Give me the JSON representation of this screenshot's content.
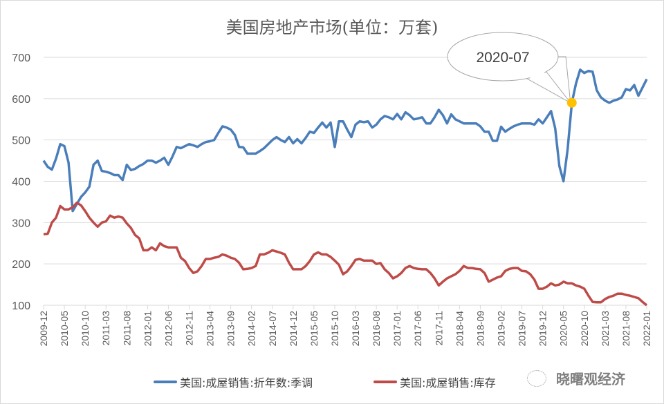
{
  "chart_data": {
    "type": "line",
    "title": "美国房地产市场(单位：万套)",
    "xlabel": "",
    "ylabel": "",
    "ylim": [
      100,
      700
    ],
    "yticks": [
      100,
      200,
      300,
      400,
      500,
      600,
      700
    ],
    "grid": true,
    "legend_position": "bottom",
    "start_month": "2009-12",
    "x_tick_labels": [
      "2009-12",
      "2010-05",
      "2010-10",
      "2011-03",
      "2011-08",
      "2012-01",
      "2012-06",
      "2012-11",
      "2013-04",
      "2013-09",
      "2014-02",
      "2014-07",
      "2014-12",
      "2015-05",
      "2015-10",
      "2016-03",
      "2016-08",
      "2017-01",
      "2017-06",
      "2017-11",
      "2018-04",
      "2018-09",
      "2019-02",
      "2019-07",
      "2019-12",
      "2020-05",
      "2020-10",
      "2021-03",
      "2021-08",
      "2022-01"
    ],
    "series": [
      {
        "name": "美国:成屋销售:折年数:季调",
        "color": "#4a7ebb",
        "values": [
          450,
          435,
          428,
          455,
          490,
          485,
          445,
          328,
          345,
          362,
          373,
          387,
          440,
          450,
          425,
          423,
          420,
          415,
          415,
          403,
          440,
          427,
          430,
          437,
          442,
          450,
          450,
          445,
          450,
          457,
          440,
          460,
          483,
          480,
          485,
          490,
          487,
          483,
          490,
          495,
          497,
          500,
          517,
          533,
          530,
          525,
          512,
          483,
          482,
          467,
          467,
          467,
          473,
          480,
          490,
          500,
          507,
          500,
          495,
          507,
          492,
          502,
          492,
          505,
          520,
          517,
          530,
          542,
          530,
          542,
          483,
          545,
          545,
          525,
          507,
          537,
          545,
          543,
          545,
          530,
          537,
          550,
          558,
          555,
          550,
          563,
          550,
          567,
          560,
          550,
          552,
          555,
          540,
          540,
          555,
          573,
          560,
          540,
          562,
          550,
          545,
          540,
          540,
          540,
          540,
          533,
          520,
          520,
          498,
          498,
          532,
          520,
          527,
          533,
          537,
          540,
          540,
          540,
          537,
          550,
          540,
          555,
          570,
          528,
          437,
          400,
          478,
          590,
          637,
          670,
          662,
          667,
          665,
          620,
          603,
          595,
          590,
          595,
          598,
          603,
          623,
          620,
          633,
          607,
          627,
          647
        ]
      },
      {
        "name": "美国:成屋销售:库存",
        "color": "#be4b48",
        "values": [
          272,
          273,
          300,
          312,
          340,
          332,
          332,
          337,
          348,
          342,
          328,
          312,
          300,
          290,
          300,
          303,
          317,
          312,
          315,
          312,
          298,
          287,
          270,
          262,
          233,
          233,
          240,
          233,
          250,
          243,
          240,
          240,
          240,
          215,
          207,
          190,
          178,
          182,
          195,
          212,
          212,
          215,
          217,
          223,
          220,
          215,
          212,
          203,
          187,
          188,
          190,
          195,
          223,
          223,
          227,
          233,
          230,
          227,
          223,
          203,
          187,
          187,
          187,
          195,
          207,
          223,
          228,
          223,
          223,
          217,
          208,
          198,
          175,
          182,
          195,
          210,
          212,
          208,
          208,
          208,
          200,
          202,
          187,
          178,
          165,
          170,
          178,
          190,
          195,
          190,
          188,
          187,
          187,
          178,
          165,
          148,
          157,
          165,
          170,
          175,
          183,
          195,
          190,
          190,
          188,
          187,
          178,
          157,
          162,
          167,
          170,
          183,
          188,
          190,
          190,
          183,
          182,
          175,
          162,
          140,
          140,
          145,
          153,
          148,
          150,
          157,
          153,
          153,
          148,
          145,
          140,
          123,
          108,
          107,
          107,
          115,
          120,
          123,
          128,
          128,
          125,
          123,
          120,
          117,
          108,
          100
        ]
      }
    ],
    "annotations": [
      {
        "text": "2020-07",
        "series": 0,
        "index": 127,
        "marker_color": "#ffc000"
      }
    ]
  },
  "watermark": "晓曙观经济"
}
